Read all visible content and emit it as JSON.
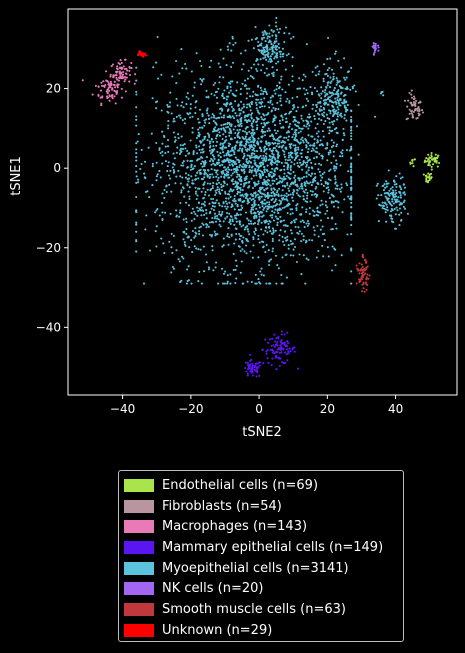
{
  "chart_data": {
    "type": "scatter",
    "title": "",
    "xlabel": "tSNE2",
    "ylabel": "tSNE1",
    "xlim": [
      -56,
      58
    ],
    "ylim": [
      -57,
      40
    ],
    "x_ticks": [
      -40,
      -20,
      0,
      20,
      40
    ],
    "y_ticks": [
      20,
      0,
      -20,
      -40
    ],
    "x_tick_labels": [
      "−40",
      "−20",
      "0",
      "20",
      "40"
    ],
    "y_tick_labels": [
      "20",
      "0",
      "−20",
      "−40"
    ],
    "grid": false,
    "legend_position": "below",
    "series": [
      {
        "name": "Endothelial cells (n=69)",
        "color": "#a8e44a",
        "n": 69,
        "clusters": [
          {
            "cx": 51,
            "cy": 2,
            "sx": 1.2,
            "sy": 0.9,
            "n": 40
          },
          {
            "cx": 45,
            "cy": 1.5,
            "sx": 0.4,
            "sy": 0.5,
            "n": 9
          },
          {
            "cx": 49.5,
            "cy": -2.5,
            "sx": 0.6,
            "sy": 0.7,
            "n": 20
          }
        ]
      },
      {
        "name": "Fibroblasts (n=54)",
        "color": "#b8959f",
        "n": 54,
        "clusters": [
          {
            "cx": 45.5,
            "cy": 15,
            "sx": 1.2,
            "sy": 1.8,
            "n": 54
          }
        ]
      },
      {
        "name": "Macrophages (n=143)",
        "color": "#e87ab8",
        "n": 143,
        "clusters": [
          {
            "cx": -44,
            "cy": 20,
            "sx": 2.2,
            "sy": 1.8,
            "n": 70
          },
          {
            "cx": -40.5,
            "cy": 24,
            "sx": 1.5,
            "sy": 1.4,
            "n": 73
          }
        ]
      },
      {
        "name": "Mammary epithelial cells (n=149)",
        "color": "#5a16f0",
        "n": 149,
        "clusters": [
          {
            "cx": 6,
            "cy": -45.5,
            "sx": 2.4,
            "sy": 1.9,
            "n": 95
          },
          {
            "cx": -2,
            "cy": -50.5,
            "sx": 1.4,
            "sy": 1.1,
            "n": 54
          }
        ]
      },
      {
        "name": "Myoepithelial cells (n=3141)",
        "color": "#5bc3dd",
        "n": 3141,
        "clusters": [
          {
            "cx": -2,
            "cy": 0,
            "sx": 14,
            "sy": 12,
            "n": 2650
          },
          {
            "cx": 3,
            "cy": 30,
            "sx": 2.5,
            "sy": 2.8,
            "n": 150
          },
          {
            "cx": 22,
            "cy": 17,
            "sx": 2.8,
            "sy": 4.5,
            "n": 200
          },
          {
            "cx": 39,
            "cy": -8,
            "sx": 2.0,
            "sy": 3.0,
            "n": 137
          },
          {
            "cx": 36,
            "cy": 19,
            "sx": 0.3,
            "sy": 0.6,
            "n": 4
          }
        ]
      },
      {
        "name": "NK cells (n=20)",
        "color": "#a266f2",
        "n": 20,
        "clusters": [
          {
            "cx": 34,
            "cy": 30,
            "sx": 0.4,
            "sy": 0.7,
            "n": 20
          }
        ]
      },
      {
        "name": "Smooth muscle cells (n=63)",
        "color": "#c0383c",
        "n": 63,
        "clusters": [
          {
            "cx": 30.5,
            "cy": -27,
            "sx": 0.9,
            "sy": 1.8,
            "n": 58
          },
          {
            "cx": 30.5,
            "cy": -22,
            "sx": 0.4,
            "sy": 0.3,
            "n": 5
          }
        ]
      },
      {
        "name": "Unknown (n=29)",
        "color": "#ff0000",
        "n": 29,
        "clusters": [
          {
            "cx": -34.5,
            "cy": 28.8,
            "sx": 0.6,
            "sy": 0.35,
            "n": 29
          }
        ]
      }
    ]
  }
}
